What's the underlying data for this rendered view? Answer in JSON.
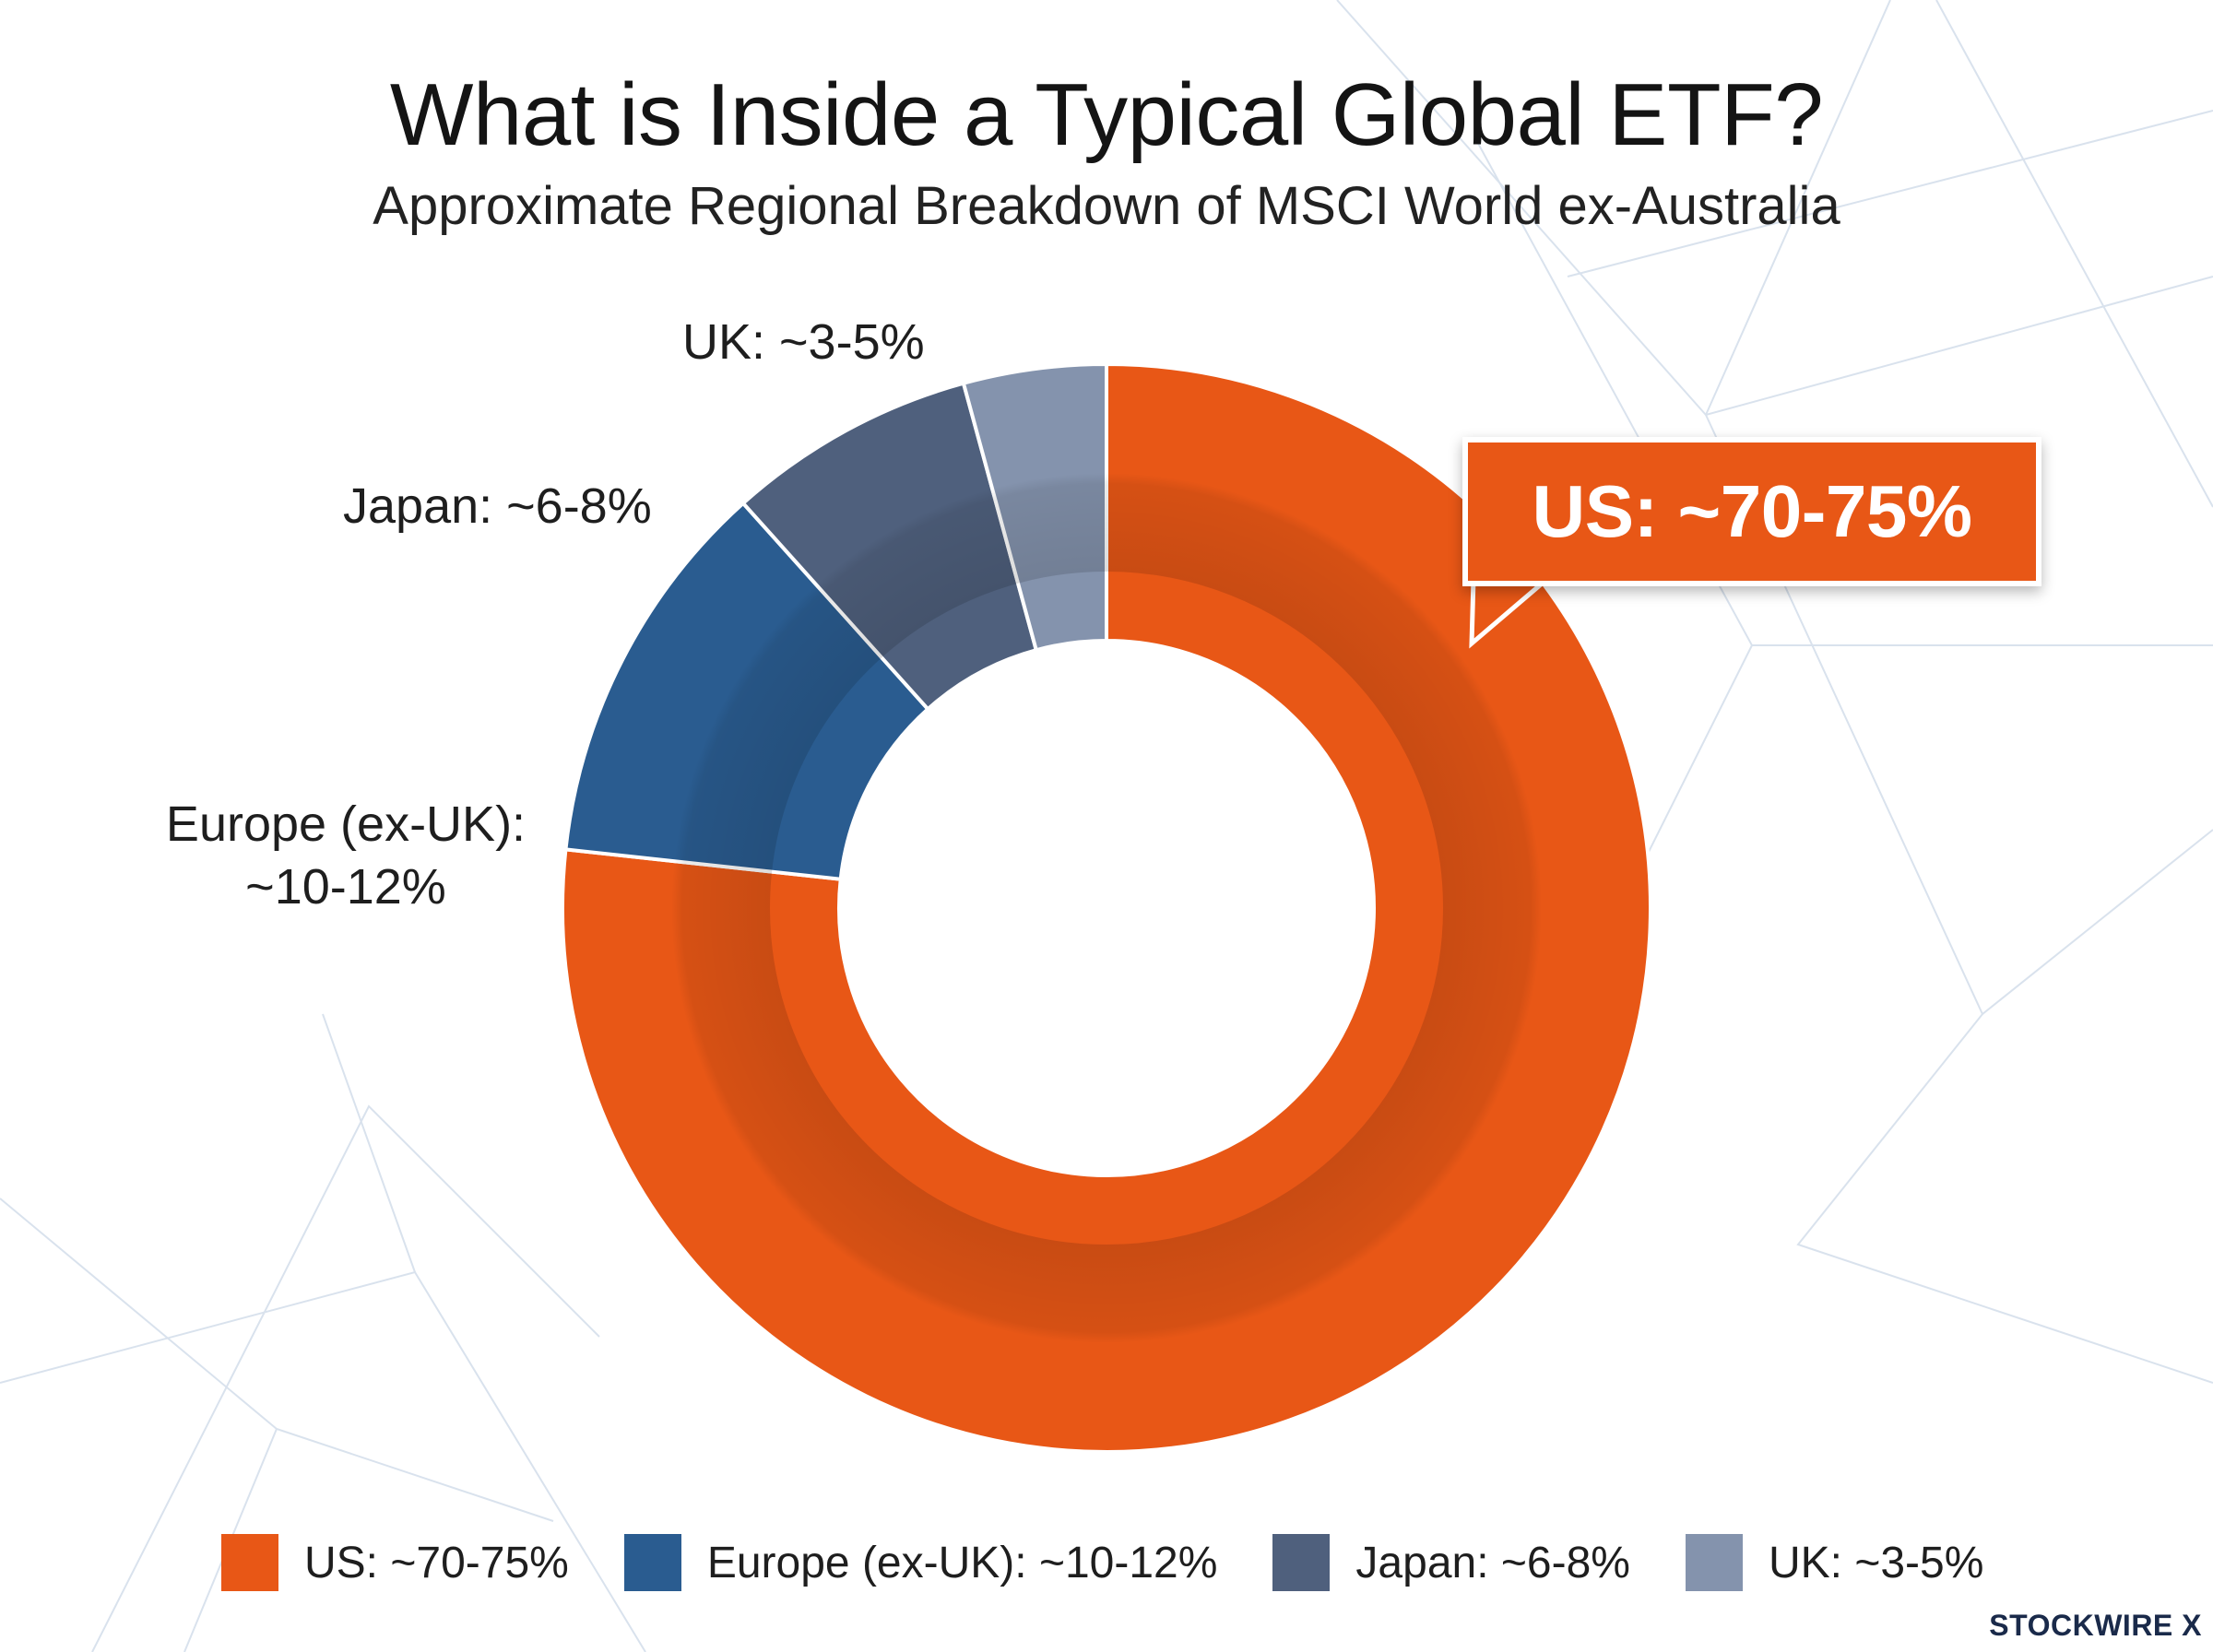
{
  "chart_data": {
    "type": "pie",
    "title": "What is Inside a Typical Global ETF?",
    "subtitle": "Approximate Regional Breakdown of MSCI World ex-Australia",
    "donut": true,
    "categories": [
      "US",
      "Europe (ex-UK)",
      "Japan",
      "UK"
    ],
    "values": [
      72.5,
      11,
      7,
      4
    ],
    "labels": [
      "US: ~70-75%",
      "Europe (ex-UK): ~10-12%",
      "Japan: ~6-8%",
      "UK: ~3-5%"
    ],
    "slice_labels": {
      "us": "US: ~70-75%",
      "europe_line1": "Europe (ex-UK):",
      "europe_line2": "~10-12%",
      "japan": "Japan: ~6-8%",
      "uk": "UK: ~3-5%"
    },
    "colors": [
      "#e85716",
      "#2a5c90",
      "#4f607d",
      "#8493ad"
    ],
    "legend": {
      "placement": "bottom",
      "entries": [
        "US: ~70-75%",
        "Europe (ex-UK): ~10-12%",
        "Japan: ~6-8%",
        "UK: ~3-5%"
      ]
    }
  },
  "branding": {
    "logo_text": "STOCKWIRE X"
  }
}
